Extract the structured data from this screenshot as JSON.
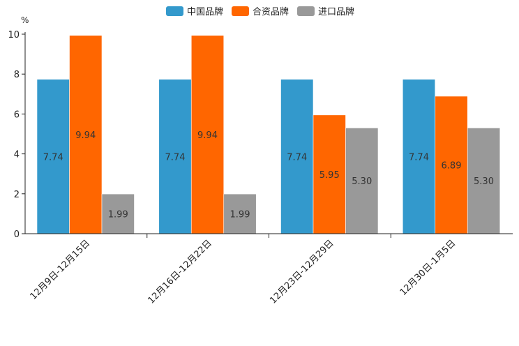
{
  "chart_data": {
    "type": "bar",
    "unit_label": "%",
    "categories": [
      "12月9日-12月15日",
      "12月16日-12月22日",
      "12月23日-12月29日",
      "12月30日-1月5日"
    ],
    "series": [
      {
        "name": "中国品牌",
        "color": "#3399cc",
        "values": [
          7.74,
          7.74,
          7.74,
          7.74
        ],
        "labels": [
          "7.74",
          "7.74",
          "7.74",
          "7.74"
        ]
      },
      {
        "name": "合资品牌",
        "color": "#ff6600",
        "values": [
          9.94,
          9.94,
          5.95,
          6.89
        ],
        "labels": [
          "9.94",
          "9.94",
          "5.95",
          "6.89"
        ]
      },
      {
        "name": "进口品牌",
        "color": "#999999",
        "values": [
          1.99,
          1.99,
          5.3,
          5.3
        ],
        "labels": [
          "1.99",
          "1.99",
          "5.30",
          "5.30"
        ]
      }
    ],
    "ylim": [
      0,
      10
    ],
    "yticks": [
      0,
      2,
      4,
      6,
      8,
      10
    ],
    "legend_position": "top-center"
  }
}
